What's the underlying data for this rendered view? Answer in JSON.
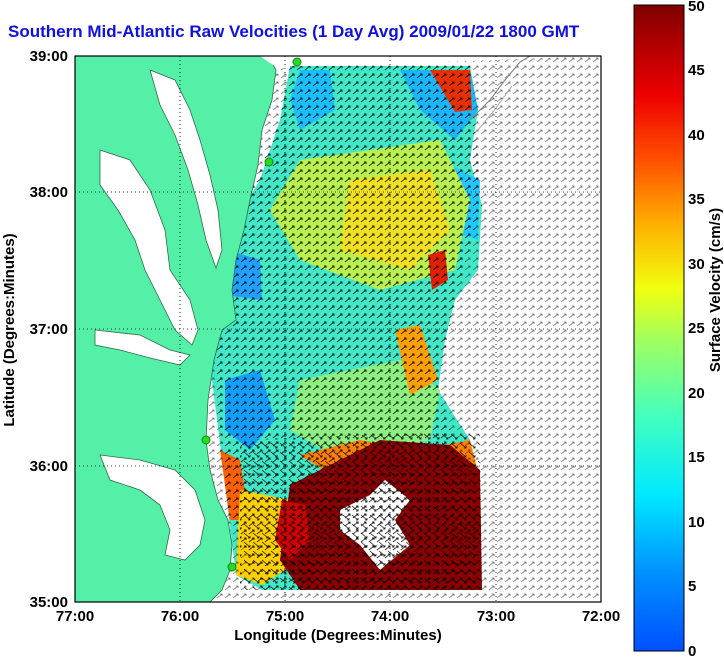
{
  "title": "Southern Mid-Atlantic Raw Velocities (1 Day Avg) 2009/01/22 1800 GMT",
  "xlabel": "Longitude (Degrees:Minutes)",
  "ylabel": "Latitude (Degrees:Minutes)",
  "x_ticks": [
    "77:00",
    "76:00",
    "75:00",
    "74:00",
    "73:00",
    "72:00"
  ],
  "y_ticks": [
    "39:00",
    "38:00",
    "37:00",
    "36:00",
    "35:00"
  ],
  "colorbar": {
    "label": "Surface Velocity (cm/s)",
    "ticks": [
      "0",
      "5",
      "10",
      "15",
      "20",
      "25",
      "30",
      "35",
      "40",
      "45",
      "50"
    ],
    "range": [
      0,
      50
    ],
    "units": "cm/s"
  },
  "colors": {
    "land": "#55f0a8",
    "coastline": "#2f6b45",
    "title": "#1010e0",
    "station": "#22dd22"
  },
  "map": {
    "lon_range": [
      -77,
      -72
    ],
    "lat_range": [
      35,
      39
    ],
    "grid": "dotted"
  }
}
